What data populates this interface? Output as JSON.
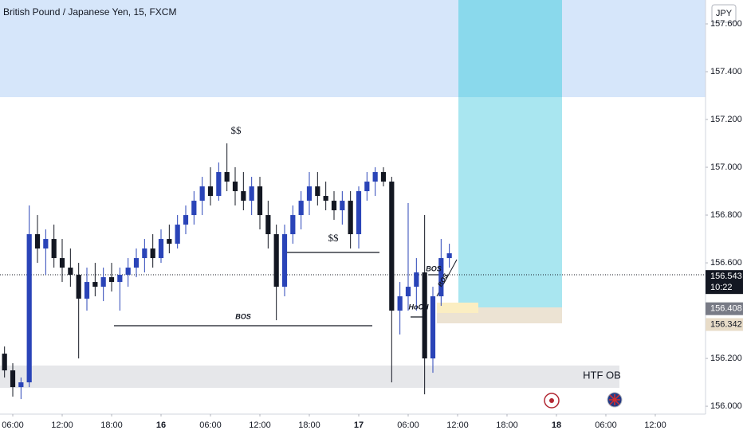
{
  "chart_data": {
    "type": "candlestick",
    "title": "British Pound / Japanese Yen, 15, FXCM",
    "currency": "JPY",
    "x": [
      5,
      6,
      7,
      8,
      9,
      10,
      11,
      12,
      13,
      14,
      15,
      16,
      17,
      18,
      19,
      20,
      21,
      22,
      23,
      24,
      25,
      26,
      27,
      28,
      29,
      30,
      31,
      32,
      33,
      34,
      35,
      36,
      37,
      38,
      39,
      40,
      41,
      42,
      43,
      44,
      45,
      46,
      47,
      48,
      49,
      50,
      51,
      52,
      53,
      54,
      55,
      56,
      57,
      58,
      59
    ],
    "open": [
      156.22,
      156.15,
      156.08,
      156.1,
      156.72,
      156.66,
      156.7,
      156.62,
      156.58,
      156.55,
      156.45,
      156.52,
      156.5,
      156.54,
      156.52,
      156.55,
      156.58,
      156.62,
      156.66,
      156.62,
      156.7,
      156.68,
      156.76,
      156.8,
      156.86,
      156.92,
      156.88,
      156.98,
      156.94,
      156.9,
      156.86,
      156.92,
      156.8,
      156.72,
      156.5,
      156.72,
      156.8,
      156.86,
      156.92,
      156.88,
      156.86,
      156.82,
      156.86,
      156.72,
      156.9,
      156.94,
      156.98,
      156.94,
      156.4,
      156.46,
      156.5,
      156.56,
      156.2,
      156.46,
      156.62
    ],
    "high": [
      156.25,
      156.18,
      156.12,
      156.84,
      156.8,
      156.74,
      156.76,
      156.7,
      156.66,
      156.6,
      156.58,
      156.6,
      156.58,
      156.6,
      156.58,
      156.62,
      156.66,
      156.7,
      156.72,
      156.74,
      156.76,
      156.8,
      156.84,
      156.9,
      156.96,
      157.0,
      157.02,
      157.1,
      157.0,
      156.98,
      156.96,
      156.96,
      156.86,
      156.76,
      156.76,
      156.84,
      156.9,
      156.98,
      156.98,
      156.94,
      156.9,
      156.9,
      156.9,
      156.92,
      156.98,
      157.0,
      157.0,
      156.96,
      156.52,
      156.85,
      156.62,
      156.8,
      156.5,
      156.7,
      156.68
    ],
    "low": [
      156.12,
      156.04,
      156.03,
      156.08,
      156.6,
      156.55,
      156.58,
      156.52,
      156.5,
      156.2,
      156.4,
      156.46,
      156.44,
      156.48,
      156.4,
      156.5,
      156.54,
      156.56,
      156.58,
      156.6,
      156.64,
      156.66,
      156.72,
      156.76,
      156.8,
      156.84,
      156.86,
      156.9,
      156.84,
      156.82,
      156.8,
      156.74,
      156.66,
      156.36,
      156.46,
      156.68,
      156.74,
      156.8,
      156.84,
      156.82,
      156.78,
      156.76,
      156.66,
      156.66,
      156.86,
      156.88,
      156.92,
      156.1,
      156.3,
      156.4,
      156.4,
      156.05,
      156.14,
      156.42,
      156.58
    ],
    "close": [
      156.15,
      156.08,
      156.1,
      156.72,
      156.66,
      156.7,
      156.62,
      156.58,
      156.55,
      156.45,
      156.52,
      156.5,
      156.54,
      156.52,
      156.55,
      156.58,
      156.62,
      156.66,
      156.62,
      156.7,
      156.68,
      156.76,
      156.8,
      156.86,
      156.92,
      156.88,
      156.98,
      156.94,
      156.9,
      156.86,
      156.92,
      156.8,
      156.72,
      156.5,
      156.72,
      156.8,
      156.86,
      156.92,
      156.88,
      156.86,
      156.82,
      156.86,
      156.72,
      156.9,
      156.94,
      156.98,
      156.94,
      156.4,
      156.46,
      156.5,
      156.56,
      156.2,
      156.46,
      156.62,
      156.64
    ],
    "up_color": "#2a44b8",
    "down_color": "#131722",
    "xlim": [
      4.45,
      90.1
    ],
    "xticks": [
      {
        "value": 6,
        "label": "06:00"
      },
      {
        "value": 12,
        "label": "12:00"
      },
      {
        "value": 18,
        "label": "18:00"
      },
      {
        "value": 24,
        "label": "16"
      },
      {
        "value": 30,
        "label": "06:00"
      },
      {
        "value": 36,
        "label": "12:00"
      },
      {
        "value": 42,
        "label": "18:00"
      },
      {
        "value": 48,
        "label": "17"
      },
      {
        "value": 54,
        "label": "06:00"
      },
      {
        "value": 60,
        "label": "12:00"
      },
      {
        "value": 66,
        "label": "18:00"
      },
      {
        "value": 72,
        "label": "18"
      },
      {
        "value": 78,
        "label": "06:00"
      },
      {
        "value": 84,
        "label": "12:00"
      }
    ],
    "ylim": [
      155.967,
      157.7
    ],
    "yticks": [
      {
        "value": 157.6,
        "label": "157.600"
      },
      {
        "value": 157.4,
        "label": "157.400"
      },
      {
        "value": 157.2,
        "label": "157.200"
      },
      {
        "value": 157.0,
        "label": "157.000"
      },
      {
        "value": 156.8,
        "label": "156.800"
      },
      {
        "value": 156.6,
        "label": "156.600"
      },
      {
        "value": 156.2,
        "label": "156.200"
      },
      {
        "value": 156.0,
        "label": "156.000"
      }
    ],
    "price_tags": [
      {
        "value": 156.543,
        "countdown": "10:22",
        "color": "#131722"
      },
      {
        "value": 156.408,
        "color": "#787b86"
      },
      {
        "value": 156.342,
        "color": "#e8dcc8"
      }
    ],
    "annotations": [
      "$$",
      "$$",
      "BOS",
      "BOS",
      "HoCH",
      "BOS",
      "HTF OB"
    ]
  }
}
